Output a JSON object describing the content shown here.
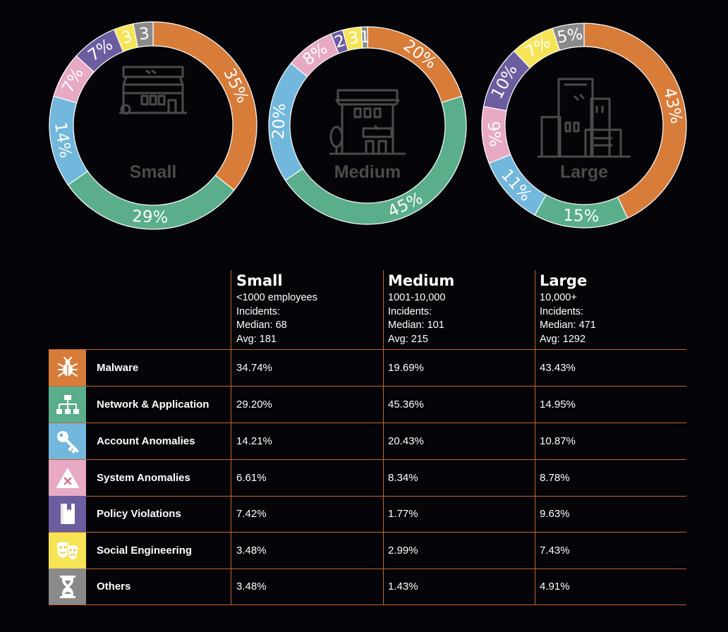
{
  "colors": {
    "malware": "#d87c3a",
    "network": "#5aae8c",
    "account": "#72b7dc",
    "system": "#e7a9c3",
    "policy": "#6c5ca0",
    "social": "#f6e456",
    "others": "#8a8a8a",
    "divider": "#c0652e"
  },
  "chart_data": [
    {
      "type": "pie",
      "name": "Small",
      "values": [
        35,
        29,
        14,
        7,
        7,
        3,
        3
      ],
      "labels": [
        "35%",
        "29%",
        "14%",
        "7%",
        "7%",
        "3",
        "3"
      ],
      "categories": [
        "Malware",
        "Network & Application",
        "Account Anomalies",
        "System Anomalies",
        "Policy Violations",
        "Social Engineering",
        "Others"
      ],
      "center_label": "Small",
      "icon": "storefront-icon"
    },
    {
      "type": "pie",
      "name": "Medium",
      "values": [
        20,
        45,
        20,
        8,
        2,
        3,
        1
      ],
      "labels": [
        "20%",
        "45%",
        "20%",
        "8%",
        "2",
        "3",
        "1"
      ],
      "categories": [
        "Malware",
        "Network & Application",
        "Account Anomalies",
        "System Anomalies",
        "Policy Violations",
        "Social Engineering",
        "Others"
      ],
      "center_label": "Medium",
      "icon": "store-building-icon"
    },
    {
      "type": "pie",
      "name": "Large",
      "values": [
        43,
        15,
        11,
        9,
        10,
        7,
        5
      ],
      "labels": [
        "43%",
        "15%",
        "11%",
        "9%",
        "10%",
        "7%",
        "5%"
      ],
      "categories": [
        "Malware",
        "Network & Application",
        "Account Anomalies",
        "System Anomalies",
        "Policy Violations",
        "Social Engineering",
        "Others"
      ],
      "center_label": "Large",
      "icon": "office-buildings-icon"
    }
  ],
  "table": {
    "columns": [
      {
        "title": "Small",
        "desc": [
          "<1000 employees",
          "Incidents:",
          "Median: 68",
          "Avg: 181"
        ]
      },
      {
        "title": "Medium",
        "desc": [
          "1001-10,000",
          "Incidents:",
          "Median: 101",
          "Avg: 215"
        ]
      },
      {
        "title": "Large",
        "desc": [
          "10,000+",
          "Incidents:",
          "Median: 471",
          "Avg: 1292"
        ]
      }
    ],
    "rows": [
      {
        "category": "Malware",
        "icon": "bug-icon",
        "values": [
          "34.74%",
          "19.69%",
          "43.43%"
        ]
      },
      {
        "category": "Network & Application",
        "icon": "network-icon",
        "values": [
          "29.20%",
          "45.36%",
          "14.95%"
        ]
      },
      {
        "category": "Account Anomalies",
        "icon": "key-icon",
        "values": [
          "14.21%",
          "20.43%",
          "10.87%"
        ]
      },
      {
        "category": "System Anomalies",
        "icon": "warning-x-icon",
        "values": [
          "6.61%",
          "8.34%",
          "8.78%"
        ]
      },
      {
        "category": "Policy Violations",
        "icon": "book-icon",
        "values": [
          "7.42%",
          "1.77%",
          "9.63%"
        ]
      },
      {
        "category": "Social Engineering",
        "icon": "theater-masks-icon",
        "values": [
          "3.48%",
          "2.99%",
          "7.43%"
        ]
      },
      {
        "category": "Others",
        "icon": "hourglass-icon",
        "values": [
          "3.48%",
          "1.43%",
          "4.91%"
        ]
      }
    ]
  }
}
